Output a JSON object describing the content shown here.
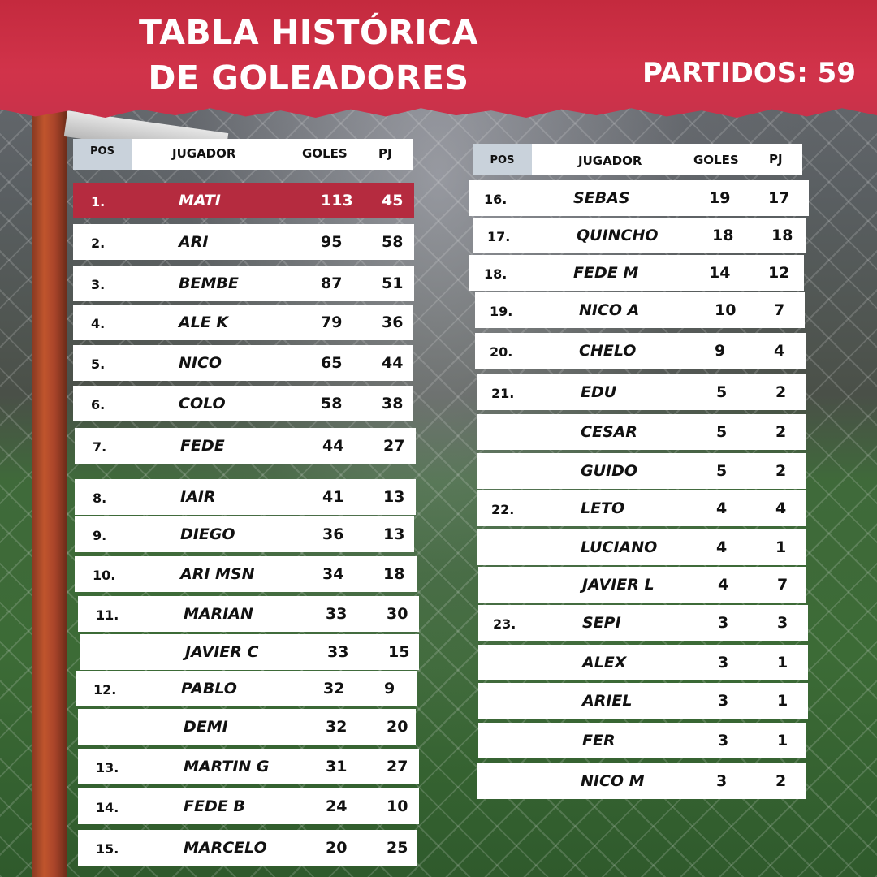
{
  "header": {
    "title_line1": "TABLA HISTÓRICA",
    "title_line2": "DE GOLEADORES",
    "partidos": "PARTIDOS: 59"
  },
  "columns": {
    "pos": "POS",
    "player": "JUGADOR",
    "goals": "GOLES",
    "games": "PJ"
  },
  "left_table": [
    {
      "pos": "1.",
      "name": "MATI",
      "goals": "113",
      "pj": "45"
    },
    {
      "pos": "2.",
      "name": "ARI",
      "goals": "95",
      "pj": "58"
    },
    {
      "pos": "3.",
      "name": "BEMBE",
      "goals": "87",
      "pj": "51"
    },
    {
      "pos": "4.",
      "name": "ALE K",
      "goals": "79",
      "pj": "36"
    },
    {
      "pos": "5.",
      "name": "NICO",
      "goals": "65",
      "pj": "44"
    },
    {
      "pos": "6.",
      "name": "COLO",
      "goals": "58",
      "pj": "38"
    },
    {
      "pos": "7.",
      "name": "FEDE",
      "goals": "44",
      "pj": "27"
    },
    {
      "pos": "8.",
      "name": "IAIR",
      "goals": "41",
      "pj": "13"
    },
    {
      "pos": "9.",
      "name": "DIEGO",
      "goals": "36",
      "pj": "13"
    },
    {
      "pos": "10.",
      "name": "ARI MSN",
      "goals": "34",
      "pj": "18"
    },
    {
      "pos": "11.",
      "name": "MARIAN",
      "goals": "33",
      "pj": "30"
    },
    {
      "pos": "",
      "name": "JAVIER C",
      "goals": "33",
      "pj": "15"
    },
    {
      "pos": "12.",
      "name": "PABLO",
      "goals": "32",
      "pj": "9"
    },
    {
      "pos": "",
      "name": "DEMI",
      "goals": "32",
      "pj": "20"
    },
    {
      "pos": "13.",
      "name": "MARTIN G",
      "goals": "31",
      "pj": "27"
    },
    {
      "pos": "14.",
      "name": "FEDE B",
      "goals": "24",
      "pj": "10"
    },
    {
      "pos": "15.",
      "name": "MARCELO",
      "goals": "20",
      "pj": "25"
    }
  ],
  "right_table": [
    {
      "pos": "16.",
      "name": "SEBAS",
      "goals": "19",
      "pj": "17"
    },
    {
      "pos": "17.",
      "name": "QUINCHO",
      "goals": "18",
      "pj": "18"
    },
    {
      "pos": "18.",
      "name": "FEDE M",
      "goals": "14",
      "pj": "12"
    },
    {
      "pos": "19.",
      "name": "NICO A",
      "goals": "10",
      "pj": "7"
    },
    {
      "pos": "20.",
      "name": "CHELO",
      "goals": "9",
      "pj": "4"
    },
    {
      "pos": "21.",
      "name": "EDU",
      "goals": "5",
      "pj": "2"
    },
    {
      "pos": "",
      "name": "CESAR",
      "goals": "5",
      "pj": "2"
    },
    {
      "pos": "",
      "name": "GUIDO",
      "goals": "5",
      "pj": "2"
    },
    {
      "pos": "22.",
      "name": "LETO",
      "goals": "4",
      "pj": "4"
    },
    {
      "pos": "",
      "name": "LUCIANO",
      "goals": "4",
      "pj": "1"
    },
    {
      "pos": "",
      "name": "JAVIER L",
      "goals": "4",
      "pj": "7"
    },
    {
      "pos": "23.",
      "name": "SEPI",
      "goals": "3",
      "pj": "3"
    },
    {
      "pos": "",
      "name": "ALEX",
      "goals": "3",
      "pj": "1"
    },
    {
      "pos": "",
      "name": "ARIEL",
      "goals": "3",
      "pj": "1"
    },
    {
      "pos": "",
      "name": "FER",
      "goals": "3",
      "pj": "1"
    },
    {
      "pos": "",
      "name": "NICO M",
      "goals": "3",
      "pj": "2"
    }
  ],
  "colors": {
    "banner": "#c42a3e",
    "highlight_row": "#b52b3f",
    "pos_header": "#c9d2db"
  }
}
